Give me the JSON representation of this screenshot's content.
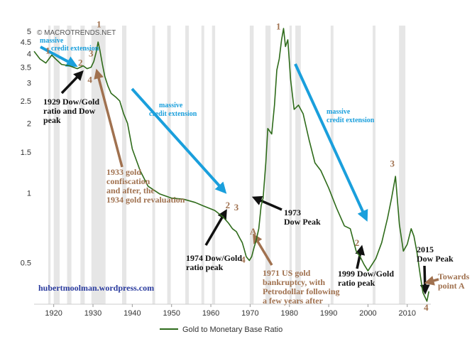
{
  "watermark": "© MACROTRENDS.NET",
  "website": "hubertmoolman.wordpress.com",
  "chart_data": {
    "type": "line",
    "title": "",
    "xlabel": "",
    "ylabel": "",
    "y_scale": "log",
    "xlim": [
      1915,
      2016
    ],
    "ylim": [
      0.33,
      5.3
    ],
    "grid": false,
    "legend_position": "bottom-center",
    "x_ticks": [
      1920,
      1930,
      1940,
      1950,
      1960,
      1970,
      1980,
      1990,
      2000,
      2010
    ],
    "y_ticks": [
      {
        "value": 0.5,
        "label": "0.5"
      },
      {
        "value": 1,
        "label": "1"
      },
      {
        "value": 1.5,
        "label": "1.5"
      },
      {
        "value": 2,
        "label": "2"
      },
      {
        "value": 2.5,
        "label": "2.5"
      },
      {
        "value": 3,
        "label": "3"
      },
      {
        "value": 3.5,
        "label": "3.5"
      },
      {
        "value": 4,
        "label": "4"
      },
      {
        "value": 4.5,
        "label": "4.5"
      },
      {
        "value": 5,
        "label": "5"
      }
    ],
    "recessions": [
      [
        1918.6,
        1919.2
      ],
      [
        1920.0,
        1921.5
      ],
      [
        1923.4,
        1924.5
      ],
      [
        1926.8,
        1927.9
      ],
      [
        1929.6,
        1933.2
      ],
      [
        1937.4,
        1938.5
      ],
      [
        1945.1,
        1945.8
      ],
      [
        1948.9,
        1949.8
      ],
      [
        1953.5,
        1954.4
      ],
      [
        1957.6,
        1958.3
      ],
      [
        1960.3,
        1961.1
      ],
      [
        1969.9,
        1970.9
      ],
      [
        1973.9,
        1975.2
      ],
      [
        1980.0,
        1980.6
      ],
      [
        1981.5,
        1982.9
      ],
      [
        1990.5,
        1991.2
      ],
      [
        2001.2,
        2001.9
      ],
      [
        2007.9,
        2009.5
      ]
    ],
    "series": [
      {
        "name": "Gold to Monetary Base Ratio",
        "color": "#2e6b1a",
        "x": [
          1915,
          1916.5,
          1918,
          1919.5,
          1920.5,
          1922,
          1924,
          1926,
          1927.5,
          1928.5,
          1929.5,
          1930.2,
          1930.8,
          1931.3,
          1931.7,
          1932.4,
          1933,
          1933.8,
          1934.6,
          1935.8,
          1936.8,
          1937.8,
          1938.8,
          1940,
          1942,
          1944,
          1947,
          1950,
          1953,
          1956,
          1958,
          1961,
          1963,
          1964.5,
          1965.5,
          1966.5,
          1967.3,
          1968,
          1968.5,
          1969,
          1969.8,
          1970.4,
          1971,
          1971.5,
          1972.2,
          1972.8,
          1973.3,
          1974,
          1974.5,
          1975.5,
          1976.2,
          1976.8,
          1977.4,
          1978,
          1978.5,
          1979,
          1979.6,
          1980.3,
          1981.2,
          1982.3,
          1983.5,
          1985,
          1986.5,
          1988,
          1990,
          1992,
          1994,
          1995.5,
          1997,
          1998,
          1999,
          2000,
          2002,
          2003.5,
          2005,
          2006,
          2007,
          2008,
          2009,
          2010,
          2011,
          2011.7,
          2012.5,
          2013.3,
          2014,
          2015,
          2015.5
        ],
        "y": [
          4.1,
          3.8,
          3.65,
          3.95,
          3.8,
          3.6,
          3.55,
          3.45,
          3.55,
          3.45,
          3.5,
          3.7,
          4.05,
          4.5,
          4.2,
          3.6,
          3.2,
          2.9,
          2.7,
          2.6,
          2.5,
          2.2,
          2.0,
          1.55,
          1.25,
          1.07,
          0.99,
          0.95,
          0.94,
          0.91,
          0.88,
          0.84,
          0.79,
          0.74,
          0.7,
          0.68,
          0.64,
          0.61,
          0.57,
          0.53,
          0.51,
          0.53,
          0.58,
          0.62,
          0.7,
          0.88,
          0.95,
          1.35,
          1.9,
          1.8,
          2.4,
          3.4,
          3.8,
          4.6,
          5.15,
          4.3,
          4.6,
          3.1,
          2.3,
          2.4,
          2.2,
          1.7,
          1.35,
          1.25,
          1.05,
          0.86,
          0.72,
          0.7,
          0.56,
          0.53,
          0.49,
          0.46,
          0.52,
          0.61,
          0.78,
          0.95,
          1.18,
          0.73,
          0.56,
          0.6,
          0.7,
          0.65,
          0.55,
          0.44,
          0.37,
          0.34,
          0.375
        ]
      }
    ],
    "waves": [
      {
        "label": "1",
        "x": 1918.5,
        "y": 4.0
      },
      {
        "label": "2",
        "x": 1926.8,
        "y": 3.55
      },
      {
        "label": "3",
        "x": 1929.5,
        "y": 3.9
      },
      {
        "label": "4",
        "x": 1929.2,
        "y": 3.0
      },
      {
        "label": "1",
        "x": 1931.5,
        "y": 5.2
      },
      {
        "label": "2",
        "x": 1964.3,
        "y": 0.86
      },
      {
        "label": "3",
        "x": 1966.5,
        "y": 0.84
      },
      {
        "label": "4",
        "x": 1968.2,
        "y": 0.5
      },
      {
        "label": "1",
        "x": 1977.2,
        "y": 5.1
      },
      {
        "label": "2",
        "x": 1997.2,
        "y": 0.59
      },
      {
        "label": "3",
        "x": 2006.2,
        "y": 1.3
      },
      {
        "label": "4",
        "x": 2014.8,
        "y": 0.31
      }
    ],
    "annotations": [
      {
        "lines": [
          "1929 Dow/Gold",
          "ratio and Dow",
          "peak"
        ]
      },
      {
        "lines": [
          "1933 gold",
          "confiscation",
          "and after, the",
          "1934 gold revaluation"
        ]
      },
      {
        "lines": [
          "1974 Dow/Gold",
          "ratio peak"
        ]
      },
      {
        "lines": [
          "1973",
          "Dow Peak"
        ]
      },
      {
        "lines": [
          "1971 US gold",
          "bankruptcy, with",
          "Petrodollar following",
          "a few years after"
        ]
      },
      {
        "lines": [
          "1999 Dow/Gold",
          "ratio peak"
        ]
      },
      {
        "lines": [
          "2015",
          "Dow Peak"
        ]
      },
      {
        "lines": [
          "Towards",
          "point A"
        ]
      },
      {
        "label": "A"
      }
    ],
    "credit_labels": [
      {
        "lines": [
          "massive",
          "credit extension"
        ]
      },
      {
        "lines": [
          "massive",
          "credit extension"
        ]
      },
      {
        "lines": [
          "massive",
          "credit extension"
        ]
      }
    ],
    "arrow_colors": {
      "credit": "#1a9fdc",
      "dark": "#111111",
      "brown": "#a0714f"
    }
  }
}
